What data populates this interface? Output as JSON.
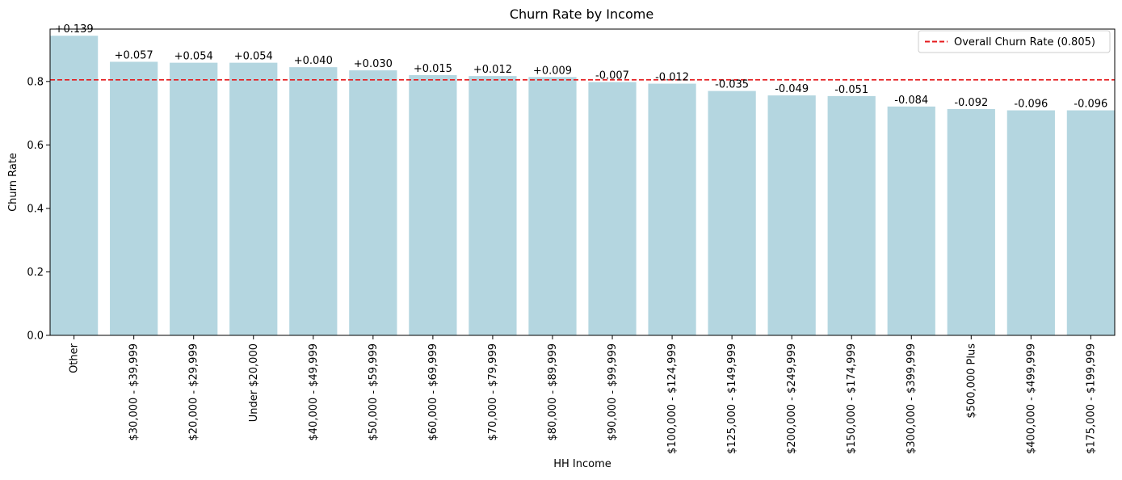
{
  "chart_data": {
    "type": "bar",
    "title": "Churn Rate by Income",
    "xlabel": "HH Income",
    "ylabel": "Churn Rate",
    "ylim": [
      0,
      0.965
    ],
    "yticks": [
      "0.0",
      "0.2",
      "0.4",
      "0.6",
      "0.8"
    ],
    "ytick_values": [
      0.0,
      0.2,
      0.4,
      0.6,
      0.8
    ],
    "grid": false,
    "bar_color": "#b4d6e0",
    "categories": [
      "Other",
      "$30,000 - $39,999",
      "$20,000 - $29,999",
      "Under $20,000",
      "$40,000 - $49,999",
      "$50,000 - $59,999",
      "$60,000 - $69,999",
      "$70,000 - $79,999",
      "$80,000 - $89,999",
      "$90,000 - $99,999",
      "$100,000 - $124,999",
      "$125,000 - $149,999",
      "$200,000 - $249,999",
      "$150,000 - $174,999",
      "$300,000 - $399,999",
      "$500,000 Plus",
      "$400,000 - $499,999",
      "$175,000 - $199,999"
    ],
    "values": [
      0.944,
      0.862,
      0.859,
      0.859,
      0.845,
      0.835,
      0.82,
      0.817,
      0.814,
      0.798,
      0.793,
      0.77,
      0.756,
      0.754,
      0.721,
      0.713,
      0.709,
      0.709
    ],
    "data_labels": [
      "+0.139",
      "+0.057",
      "+0.054",
      "+0.054",
      "+0.040",
      "+0.030",
      "+0.015",
      "+0.012",
      "+0.009",
      "-0.007",
      "-0.012",
      "-0.035",
      "-0.049",
      "-0.051",
      "-0.084",
      "-0.092",
      "-0.096",
      "-0.096"
    ],
    "reference_line": {
      "value": 0.805,
      "label": "Overall Churn Rate (0.805)",
      "color": "#e41a1c",
      "style": "dashed"
    },
    "legend": {
      "placement": "top-right"
    }
  }
}
